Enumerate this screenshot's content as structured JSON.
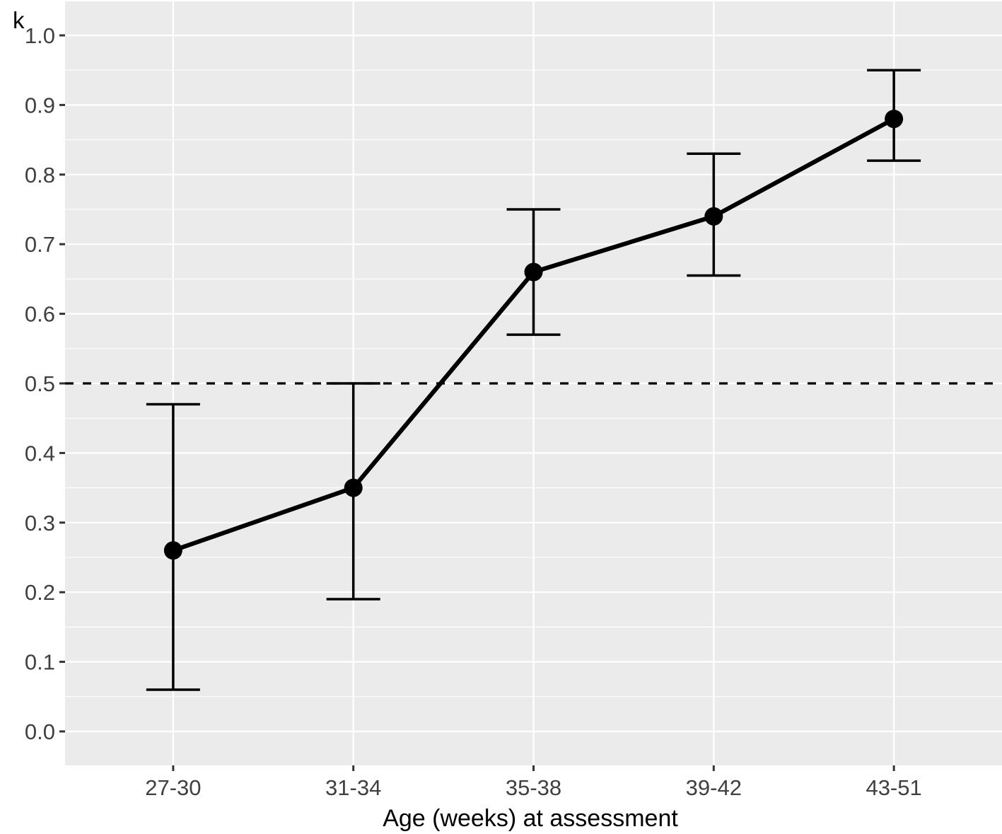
{
  "chart_data": {
    "type": "line",
    "title": "",
    "ylabel": "k",
    "xlabel": "Age (weeks) at assessment",
    "categories": [
      "27-30",
      "31-34",
      "35-38",
      "39-42",
      "43-51"
    ],
    "series": [
      {
        "name": "k",
        "values": [
          0.26,
          0.35,
          0.66,
          0.74,
          0.88
        ],
        "ci_low": [
          0.06,
          0.19,
          0.57,
          0.655,
          0.82
        ],
        "ci_high": [
          0.47,
          0.5,
          0.75,
          0.83,
          0.95
        ]
      }
    ],
    "reference_line_y": 0.5,
    "reference_line_style": "dashed",
    "yticks": [
      0.0,
      0.1,
      0.2,
      0.3,
      0.4,
      0.5,
      0.6,
      0.7,
      0.8,
      0.9,
      1.0
    ],
    "ytick_labels": [
      "0.0",
      "0.1",
      "0.2",
      "0.3",
      "0.4",
      "0.5",
      "0.6",
      "0.7",
      "0.8",
      "0.9",
      "1.0"
    ],
    "ylim": [
      -0.05,
      1.05
    ],
    "grid": "horizontal major+minor white, vertical major at categories",
    "legend": "none",
    "marker": "filled-circle",
    "colors": {
      "panel_bg": "#EBEBEB",
      "gridline": "#FFFFFF",
      "series": "#000000",
      "tick_text": "#404040",
      "title_text": "#000000"
    }
  }
}
